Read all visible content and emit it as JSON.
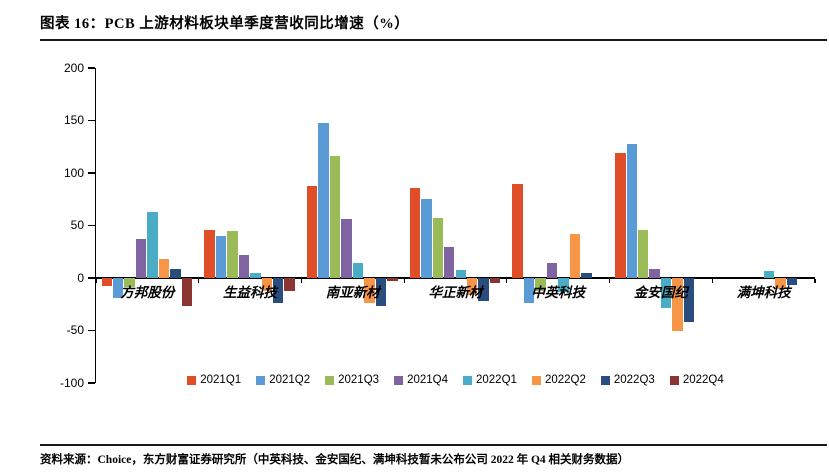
{
  "title": "图表 16：PCB 上游材料板块单季度营收同比增速（%）",
  "source_note": "资料来源：Choice，东方财富证券研究所（中英科技、金安国纪、满坤科技暂未公布公司 2022 年 Q4 相关财务数据）",
  "chart_data": {
    "type": "bar",
    "title": "PCB 上游材料板块单季度营收同比增速（%）",
    "categories": [
      "方邦股份",
      "生益科技",
      "南亚新材",
      "华正新材",
      "中英科技",
      "金安国纪",
      "满坤科技"
    ],
    "series": [
      {
        "name": "2021Q1",
        "color": "#DF4E28",
        "values": [
          -8,
          46,
          88,
          86,
          90,
          119,
          null
        ]
      },
      {
        "name": "2021Q2",
        "color": "#5B9BD5",
        "values": [
          -19,
          40,
          148,
          75,
          -24,
          128,
          null
        ]
      },
      {
        "name": "2021Q3",
        "color": "#9BBB59",
        "values": [
          -9,
          45,
          116,
          57,
          -12,
          46,
          null
        ]
      },
      {
        "name": "2021Q4",
        "color": "#8064A2",
        "values": [
          37,
          22,
          56,
          30,
          14,
          9,
          null
        ]
      },
      {
        "name": "2022Q1",
        "color": "#4BACC6",
        "values": [
          63,
          5,
          14,
          8,
          -13,
          -29,
          7
        ]
      },
      {
        "name": "2022Q2",
        "color": "#F79646",
        "values": [
          18,
          -12,
          -24,
          -16,
          42,
          -50,
          -10
        ]
      },
      {
        "name": "2022Q3",
        "color": "#294E7E",
        "values": [
          9,
          -24,
          -27,
          -22,
          5,
          -42,
          -7
        ]
      },
      {
        "name": "2022Q4",
        "color": "#8B3532",
        "values": [
          -27,
          -12,
          -3,
          -5,
          null,
          null,
          null
        ]
      }
    ],
    "yticks": [
      200,
      150,
      100,
      50,
      0,
      -50,
      -100
    ],
    "ylim": [
      -100,
      200
    ],
    "grid": false,
    "legend_position": "bottom",
    "xlabel": "",
    "ylabel": ""
  }
}
